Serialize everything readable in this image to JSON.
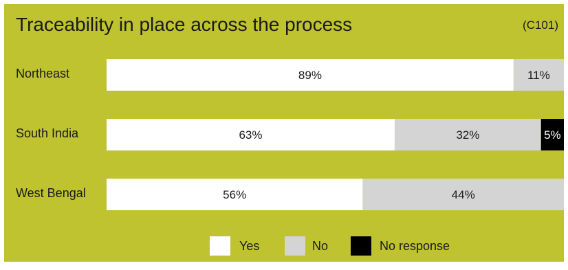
{
  "chart_data": {
    "type": "bar",
    "orientation": "horizontal",
    "stacked": true,
    "title": "Traceability in place across the process",
    "code": "(C101)",
    "categories": [
      "Northeast",
      "South India",
      "West Bengal"
    ],
    "series": [
      {
        "name": "Yes",
        "color": "#ffffff",
        "text_color": "#1a1a1a",
        "values": [
          89,
          63,
          56
        ],
        "labels": [
          "89%",
          "63%",
          "56%"
        ]
      },
      {
        "name": "No",
        "color": "#d4d4d4",
        "text_color": "#1a1a1a",
        "values": [
          11,
          32,
          44
        ],
        "labels": [
          "11%",
          "32%",
          "44%"
        ]
      },
      {
        "name": "No response",
        "color": "#000000",
        "text_color": "#ffffff",
        "values": [
          0,
          5,
          0
        ],
        "labels": [
          "",
          "5%",
          ""
        ]
      }
    ],
    "xlim": [
      0,
      100
    ],
    "grid": false,
    "legend_position": "bottom"
  },
  "colors": {
    "background": "#bfc330",
    "text": "#1a1a1a"
  }
}
